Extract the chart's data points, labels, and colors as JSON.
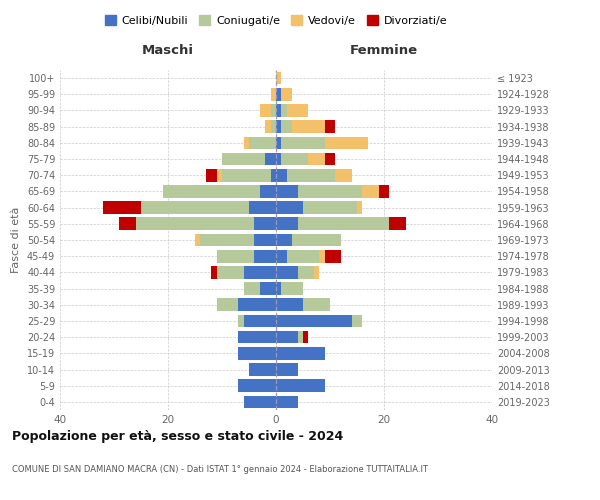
{
  "age_groups": [
    "0-4",
    "5-9",
    "10-14",
    "15-19",
    "20-24",
    "25-29",
    "30-34",
    "35-39",
    "40-44",
    "45-49",
    "50-54",
    "55-59",
    "60-64",
    "65-69",
    "70-74",
    "75-79",
    "80-84",
    "85-89",
    "90-94",
    "95-99",
    "100+"
  ],
  "birth_years": [
    "2019-2023",
    "2014-2018",
    "2009-2013",
    "2004-2008",
    "1999-2003",
    "1994-1998",
    "1989-1993",
    "1984-1988",
    "1979-1983",
    "1974-1978",
    "1969-1973",
    "1964-1968",
    "1959-1963",
    "1954-1958",
    "1949-1953",
    "1944-1948",
    "1939-1943",
    "1934-1938",
    "1929-1933",
    "1924-1928",
    "≤ 1923"
  ],
  "colors": {
    "celibi": "#4472c4",
    "coniugati": "#b5c99a",
    "vedovi": "#f5c06a",
    "divorziati": "#c00000"
  },
  "males": {
    "celibi": [
      6,
      7,
      5,
      7,
      7,
      6,
      7,
      3,
      6,
      4,
      4,
      4,
      5,
      3,
      1,
      2,
      0,
      0,
      0,
      0,
      0
    ],
    "coniugati": [
      0,
      0,
      0,
      0,
      0,
      1,
      4,
      3,
      5,
      7,
      10,
      22,
      20,
      18,
      9,
      8,
      5,
      1,
      1,
      0,
      0
    ],
    "vedovi": [
      0,
      0,
      0,
      0,
      0,
      0,
      0,
      0,
      0,
      0,
      1,
      0,
      0,
      0,
      1,
      0,
      1,
      1,
      2,
      1,
      0
    ],
    "divorziati": [
      0,
      0,
      0,
      0,
      0,
      0,
      0,
      0,
      1,
      0,
      0,
      3,
      7,
      0,
      2,
      0,
      0,
      0,
      0,
      0,
      0
    ]
  },
  "females": {
    "celibi": [
      4,
      9,
      4,
      9,
      4,
      14,
      5,
      1,
      4,
      2,
      3,
      4,
      5,
      4,
      2,
      1,
      1,
      1,
      1,
      1,
      0
    ],
    "coniugati": [
      0,
      0,
      0,
      0,
      1,
      2,
      5,
      4,
      3,
      6,
      9,
      17,
      10,
      12,
      9,
      5,
      8,
      2,
      1,
      0,
      0
    ],
    "vedovi": [
      0,
      0,
      0,
      0,
      0,
      0,
      0,
      0,
      1,
      1,
      0,
      0,
      1,
      3,
      3,
      3,
      8,
      6,
      4,
      2,
      1
    ],
    "divorziati": [
      0,
      0,
      0,
      0,
      1,
      0,
      0,
      0,
      0,
      3,
      0,
      3,
      0,
      2,
      0,
      2,
      0,
      2,
      0,
      0,
      0
    ]
  },
  "xlim": 40,
  "title": "Popolazione per età, sesso e stato civile - 2024",
  "subtitle": "COMUNE DI SAN DAMIANO MACRA (CN) - Dati ISTAT 1° gennaio 2024 - Elaborazione TUTTAITALIA.IT",
  "xlabel_left": "Maschi",
  "xlabel_right": "Femmine",
  "ylabel_left": "Fasce di età",
  "legend_labels": [
    "Celibi/Nubili",
    "Coniugati/e",
    "Vedovi/e",
    "Divorziati/e"
  ],
  "bg_color": "#ffffff",
  "plot_bg_color": "#ffffff",
  "grid_color": "#cccccc"
}
